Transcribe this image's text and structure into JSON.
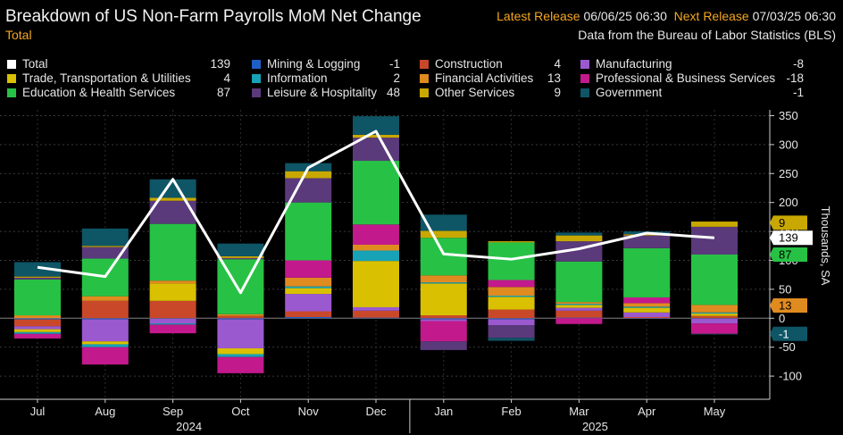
{
  "header": {
    "title": "Breakdown of US Non-Farm Payrolls MoM Net Change",
    "subtitle": "Total",
    "latest_label": "Latest Release",
    "latest_value": "06/06/25 06:30",
    "next_label": "Next Release",
    "next_value": "07/03/25 06:30",
    "source": "Data from the Bureau of Labor Statistics (BLS)"
  },
  "colors": {
    "background": "#000000",
    "grid": "#3a3a3a",
    "total_line": "#ffffff"
  },
  "chart_data": {
    "type": "bar",
    "stacked": true,
    "categories": [
      "Jul",
      "Aug",
      "Sep",
      "Oct",
      "Nov",
      "Dec",
      "Jan",
      "Feb",
      "Mar",
      "Apr",
      "May"
    ],
    "year_labels": [
      {
        "label": "2024",
        "category": "Sep"
      },
      {
        "label": "2025",
        "category": "Mar"
      }
    ],
    "ylabel": "Thousands, SA",
    "ylim": [
      -140,
      360
    ],
    "yticks": [
      -100,
      -50,
      0,
      50,
      100,
      150,
      200,
      250,
      300,
      350
    ],
    "grid": true,
    "legend_position": "top",
    "series": [
      {
        "name": "Total",
        "color": "#ffffff",
        "latest": "139",
        "kind": "line",
        "values": [
          88,
          72,
          240,
          44,
          260,
          323,
          111,
          102,
          120,
          147,
          139
        ]
      },
      {
        "name": "Mining & Logging",
        "color": "#1f5fc4",
        "latest": "-1",
        "values": [
          -2,
          -2,
          -1,
          -2,
          2,
          1,
          -2,
          -2,
          1,
          -1,
          -1
        ]
      },
      {
        "name": "Construction",
        "color": "#c9482a",
        "latest": "4",
        "values": [
          -12,
          30,
          30,
          4,
          10,
          12,
          5,
          15,
          12,
          2,
          4
        ]
      },
      {
        "name": "Manufacturing",
        "color": "#9b59d0",
        "latest": "-8",
        "values": [
          -5,
          -38,
          -8,
          -50,
          30,
          6,
          -3,
          -10,
          5,
          8,
          -8
        ]
      },
      {
        "name": "Trade, Transportation & Utilities",
        "color": "#d9c000",
        "latest": "4",
        "values": [
          -5,
          -5,
          30,
          -10,
          10,
          80,
          55,
          22,
          5,
          8,
          4
        ]
      },
      {
        "name": "Information",
        "color": "#17a2b8",
        "latest": "2",
        "values": [
          -3,
          -5,
          -2,
          -5,
          3,
          18,
          2,
          2,
          2,
          2,
          2
        ]
      },
      {
        "name": "Financial Activities",
        "color": "#e08b20",
        "latest": "13",
        "values": [
          5,
          8,
          5,
          3,
          15,
          10,
          12,
          15,
          3,
          6,
          13
        ]
      },
      {
        "name": "Professional & Business Services",
        "color": "#c2198c",
        "latest": "-18",
        "values": [
          -8,
          -30,
          -15,
          -28,
          30,
          35,
          -35,
          12,
          -10,
          10,
          -18
        ]
      },
      {
        "name": "Education & Health Services",
        "color": "#27c245",
        "latest": "87",
        "values": [
          62,
          65,
          98,
          95,
          100,
          110,
          65,
          65,
          70,
          85,
          87
        ]
      },
      {
        "name": "Leisure & Hospitality",
        "color": "#5a3a7a",
        "latest": "48",
        "values": [
          3,
          20,
          40,
          2,
          42,
          40,
          -15,
          -22,
          35,
          22,
          48
        ]
      },
      {
        "name": "Other Services",
        "color": "#c8a800",
        "latest": "9",
        "values": [
          2,
          2,
          5,
          3,
          12,
          5,
          12,
          2,
          10,
          2,
          9
        ]
      },
      {
        "name": "Government",
        "color": "#0e5566",
        "latest": "-1",
        "values": [
          25,
          30,
          32,
          22,
          14,
          32,
          28,
          -5,
          5,
          5,
          -1
        ]
      }
    ],
    "axis_badges": [
      {
        "label": "9",
        "value": 9,
        "y": 165,
        "color": "#c8a800",
        "text_color": "#000000"
      },
      {
        "label": "139",
        "value": 139,
        "y": 139,
        "color": "#ffffff",
        "text_color": "#000000"
      },
      {
        "label": "87",
        "value": 87,
        "y": 110,
        "color": "#27c245",
        "text_color": "#000000"
      },
      {
        "label": "13",
        "value": 13,
        "y": 22,
        "color": "#e08b20",
        "text_color": "#000000"
      },
      {
        "label": "-1",
        "value": -1,
        "y": -27,
        "color": "#0e5566",
        "text_color": "#ffffff"
      }
    ]
  }
}
